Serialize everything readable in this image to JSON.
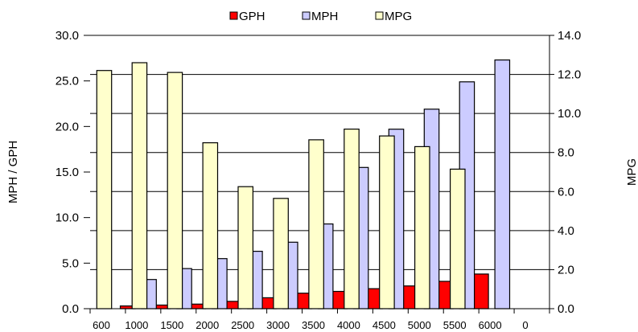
{
  "chart_data": {
    "type": "bar",
    "categories": [
      "600",
      "1000",
      "1500",
      "2000",
      "2500",
      "3000",
      "3500",
      "4000",
      "4500",
      "5000",
      "5500",
      "6000",
      "0"
    ],
    "series": [
      {
        "name": "GPH",
        "axis": "left",
        "color": "#ff0000",
        "values": [
          0.3,
          0.4,
          0.5,
          0.8,
          1.2,
          1.7,
          1.9,
          2.2,
          2.5,
          3.0,
          3.8,
          null,
          null
        ]
      },
      {
        "name": "MPH",
        "axis": "left",
        "color": "#ccccff",
        "values": [
          3.2,
          4.4,
          5.5,
          6.3,
          7.3,
          9.3,
          15.5,
          19.7,
          21.9,
          24.9,
          27.3,
          null,
          null
        ]
      },
      {
        "name": "MPG",
        "axis": "right",
        "color": "#ffffcc",
        "values": [
          12.2,
          12.6,
          12.1,
          8.5,
          6.25,
          5.65,
          8.65,
          9.2,
          8.85,
          8.3,
          7.15,
          null,
          null
        ]
      }
    ],
    "ylabel": "MPH / GPH",
    "y2label": "MPG",
    "xlabel": "",
    "ylim": [
      0,
      30
    ],
    "y2lim": [
      0,
      14
    ],
    "yticks": [
      "0.0",
      "5.0",
      "10.0",
      "15.0",
      "20.0",
      "25.0",
      "30.0"
    ],
    "y2ticks": [
      "0.0",
      "2.0",
      "4.0",
      "6.0",
      "8.0",
      "10.0",
      "12.0",
      "14.0"
    ],
    "grid": true,
    "legend_position": "top"
  }
}
